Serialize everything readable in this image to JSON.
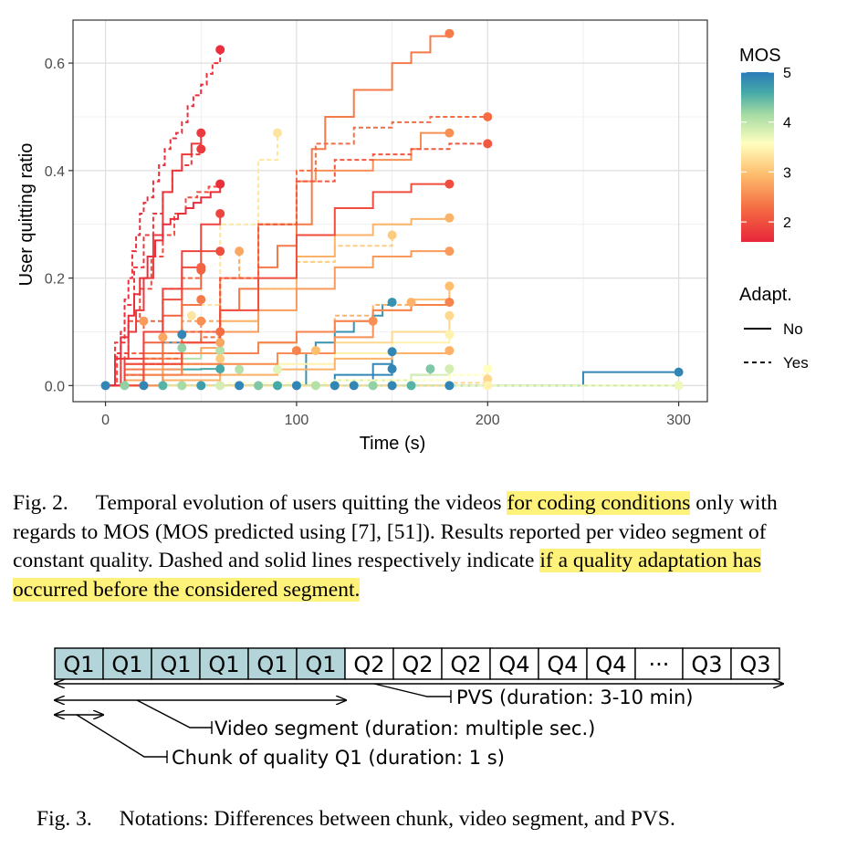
{
  "chart_data": {
    "type": "line",
    "xlabel": "Time (s)",
    "ylabel": "User quitting ratio",
    "xlim": [
      -17,
      315
    ],
    "ylim": [
      -0.03,
      0.68
    ],
    "xticks": [
      0,
      100,
      200,
      300
    ],
    "yticks": [
      0.0,
      0.2,
      0.4,
      0.6
    ],
    "ytick_labels": [
      "0.0",
      "0.2",
      "0.4",
      "0.6"
    ],
    "grid": true,
    "legend": {
      "color_title": "MOS",
      "color_ticks": [
        5,
        4,
        3,
        2
      ],
      "color_range": [
        1.6,
        5
      ],
      "linetype_title": "Adapt.",
      "linetype_entries": [
        "No",
        "Yes"
      ],
      "placement": "right"
    },
    "colorscale": [
      "#d7191c",
      "#fdae61",
      "#ffffbf",
      "#abdda4",
      "#2b83ba"
    ],
    "series": [
      {
        "mos": 1.7,
        "adapt": "Yes",
        "x": [
          0,
          5,
          8,
          10,
          12,
          14,
          16,
          18,
          20,
          22,
          25,
          28,
          31,
          34,
          37,
          40,
          43,
          46,
          50,
          53,
          56,
          60
        ],
        "y": [
          0,
          0.06,
          0.1,
          0.16,
          0.2,
          0.25,
          0.28,
          0.32,
          0.34,
          0.35,
          0.38,
          0.41,
          0.44,
          0.46,
          0.47,
          0.49,
          0.52,
          0.54,
          0.56,
          0.58,
          0.6,
          0.625
        ]
      },
      {
        "mos": 1.8,
        "adapt": "No",
        "x": [
          0,
          8,
          12,
          16,
          20,
          25,
          30,
          35,
          40,
          45,
          50
        ],
        "y": [
          0,
          0.05,
          0.1,
          0.14,
          0.2,
          0.28,
          0.36,
          0.4,
          0.43,
          0.45,
          0.47
        ]
      },
      {
        "mos": 1.8,
        "adapt": "Yes",
        "x": [
          0,
          5,
          10,
          15,
          20,
          25,
          30,
          35,
          40,
          45,
          50
        ],
        "y": [
          0,
          0.08,
          0.15,
          0.22,
          0.28,
          0.32,
          0.36,
          0.4,
          0.41,
          0.43,
          0.44
        ]
      },
      {
        "mos": 2.0,
        "adapt": "Yes",
        "x": [
          0,
          6,
          12,
          18,
          24,
          30,
          36,
          42,
          48,
          54,
          60
        ],
        "y": [
          0,
          0.06,
          0.12,
          0.18,
          0.24,
          0.28,
          0.32,
          0.35,
          0.36,
          0.37,
          0.375
        ]
      },
      {
        "mos": 1.9,
        "adapt": "No",
        "x": [
          0,
          10,
          20,
          30,
          40,
          50,
          60
        ],
        "y": [
          0,
          0.05,
          0.1,
          0.18,
          0.25,
          0.3,
          0.32
        ]
      },
      {
        "mos": 2.0,
        "adapt": "No",
        "x": [
          0,
          10,
          20,
          30,
          40,
          50,
          60
        ],
        "y": [
          0,
          0.04,
          0.1,
          0.16,
          0.22,
          0.25,
          0.25
        ]
      },
      {
        "mos": 2.2,
        "adapt": "Yes",
        "x": [
          0,
          10,
          20,
          30,
          40,
          50
        ],
        "y": [
          0,
          0.06,
          0.12,
          0.18,
          0.2,
          0.22
        ]
      },
      {
        "mos": 2.2,
        "adapt": "No",
        "x": [
          0,
          10,
          20,
          30,
          40,
          50
        ],
        "y": [
          0,
          0.04,
          0.08,
          0.13,
          0.18,
          0.215
        ]
      },
      {
        "mos": 2.4,
        "adapt": "No",
        "x": [
          0,
          10,
          20,
          30,
          40,
          50
        ],
        "y": [
          0,
          0.03,
          0.06,
          0.1,
          0.15,
          0.16
        ]
      },
      {
        "mos": 2.6,
        "adapt": "Yes",
        "x": [
          0,
          10,
          20,
          30,
          40,
          50
        ],
        "y": [
          0,
          0.02,
          0.05,
          0.08,
          0.1,
          0.12
        ]
      },
      {
        "mos": 2.3,
        "adapt": "Yes",
        "x": [
          0,
          10,
          20,
          30,
          40,
          50,
          60
        ],
        "y": [
          0,
          0.02,
          0.04,
          0.06,
          0.08,
          0.09,
          0.1
        ]
      },
      {
        "mos": 2.8,
        "adapt": "No",
        "x": [
          0,
          10,
          20,
          30,
          40,
          50,
          60
        ],
        "y": [
          0,
          0.01,
          0.02,
          0.04,
          0.06,
          0.07,
          0.08
        ]
      },
      {
        "mos": 1.7,
        "adapt": "No",
        "x": [
          0,
          5,
          8,
          12,
          15,
          18,
          22,
          26,
          30,
          34,
          38,
          42,
          46,
          50,
          55,
          60
        ],
        "y": [
          0,
          0.05,
          0.09,
          0.13,
          0.17,
          0.2,
          0.24,
          0.27,
          0.3,
          0.31,
          0.32,
          0.33,
          0.34,
          0.35,
          0.36,
          0.375
        ]
      },
      {
        "mos": 2.4,
        "adapt": "No",
        "x": [
          0,
          10,
          20,
          30,
          40,
          50,
          60,
          70,
          80,
          90,
          100,
          108,
          115,
          130,
          150,
          160,
          170,
          180
        ],
        "y": [
          0,
          0.02,
          0.04,
          0.06,
          0.08,
          0.1,
          0.14,
          0.18,
          0.22,
          0.26,
          0.3,
          0.44,
          0.5,
          0.55,
          0.6,
          0.62,
          0.65,
          0.655
        ]
      },
      {
        "mos": 2.3,
        "adapt": "Yes",
        "x": [
          0,
          20,
          40,
          60,
          80,
          100,
          110,
          130,
          150,
          170,
          200
        ],
        "y": [
          0,
          0.05,
          0.1,
          0.2,
          0.3,
          0.4,
          0.45,
          0.48,
          0.49,
          0.5,
          0.5
        ]
      },
      {
        "mos": 2.1,
        "adapt": "Yes",
        "x": [
          0,
          20,
          40,
          60,
          80,
          100,
          120,
          140,
          160,
          180,
          200
        ],
        "y": [
          0,
          0.04,
          0.1,
          0.2,
          0.3,
          0.38,
          0.42,
          0.43,
          0.44,
          0.45,
          0.45
        ]
      },
      {
        "mos": 2.6,
        "adapt": "No",
        "x": [
          0,
          20,
          40,
          60,
          80,
          100,
          110,
          140,
          160,
          165,
          180
        ],
        "y": [
          0,
          0.05,
          0.1,
          0.2,
          0.3,
          0.38,
          0.4,
          0.42,
          0.44,
          0.47,
          0.47
        ]
      },
      {
        "mos": 2.0,
        "adapt": "No",
        "x": [
          0,
          20,
          40,
          60,
          80,
          100,
          120,
          140,
          160,
          180
        ],
        "y": [
          0,
          0.04,
          0.08,
          0.14,
          0.2,
          0.28,
          0.33,
          0.36,
          0.375,
          0.375
        ]
      },
      {
        "mos": 2.9,
        "adapt": "No",
        "x": [
          0,
          20,
          40,
          60,
          80,
          100,
          120,
          140,
          160,
          180
        ],
        "y": [
          0,
          0.04,
          0.08,
          0.12,
          0.18,
          0.24,
          0.28,
          0.3,
          0.31,
          0.312
        ]
      },
      {
        "mos": 2.7,
        "adapt": "No",
        "x": [
          0,
          20,
          40,
          60,
          80,
          100,
          120,
          140,
          160,
          180
        ],
        "y": [
          0,
          0.03,
          0.06,
          0.1,
          0.14,
          0.18,
          0.22,
          0.24,
          0.25,
          0.25
        ]
      },
      {
        "mos": 3.1,
        "adapt": "Yes",
        "x": [
          0,
          20,
          40,
          60,
          80,
          100,
          120,
          150
        ],
        "y": [
          0,
          0.04,
          0.08,
          0.12,
          0.18,
          0.23,
          0.26,
          0.28
        ]
      },
      {
        "mos": 3.3,
        "adapt": "Yes",
        "x": [
          0,
          20,
          40,
          60,
          80,
          90
        ],
        "y": [
          0,
          0.05,
          0.15,
          0.3,
          0.42,
          0.47
        ]
      },
      {
        "mos": 2.8,
        "adapt": "Yes",
        "x": [
          0,
          20,
          40,
          60,
          70
        ],
        "y": [
          0,
          0.05,
          0.12,
          0.2,
          0.25
        ]
      },
      {
        "mos": 3.0,
        "adapt": "No",
        "x": [
          0,
          20,
          40,
          60,
          80,
          100,
          120,
          140,
          160,
          180
        ],
        "y": [
          0,
          0.02,
          0.04,
          0.06,
          0.08,
          0.1,
          0.12,
          0.14,
          0.16,
          0.185
        ]
      },
      {
        "mos": 2.5,
        "adapt": "No",
        "x": [
          0,
          20,
          40,
          60,
          80,
          100,
          120,
          140,
          160,
          180
        ],
        "y": [
          0,
          0.02,
          0.04,
          0.06,
          0.08,
          0.1,
          0.12,
          0.14,
          0.15,
          0.155
        ]
      },
      {
        "mos": 2.9,
        "adapt": "Yes",
        "x": [
          0,
          20,
          40,
          60,
          80,
          100,
          120,
          140,
          160
        ],
        "y": [
          0,
          0.02,
          0.04,
          0.06,
          0.08,
          0.1,
          0.13,
          0.15,
          0.155
        ]
      },
      {
        "mos": 4.8,
        "adapt": "No",
        "x": [
          0,
          50,
          100,
          105,
          110,
          120,
          130,
          140,
          145,
          150
        ],
        "y": [
          0,
          0,
          0,
          0.06,
          0.08,
          0.1,
          0.12,
          0.13,
          0.15,
          0.155
        ]
      },
      {
        "mos": 2.6,
        "adapt": "No",
        "x": [
          0,
          30,
          60,
          90,
          120,
          140
        ],
        "y": [
          0,
          0.02,
          0.04,
          0.06,
          0.09,
          0.12
        ]
      },
      {
        "mos": 3.2,
        "adapt": "No",
        "x": [
          0,
          30,
          60,
          90,
          120,
          150,
          180
        ],
        "y": [
          0,
          0.02,
          0.04,
          0.06,
          0.08,
          0.1,
          0.13
        ]
      },
      {
        "mos": 3.4,
        "adapt": "No",
        "x": [
          0,
          30,
          60,
          90,
          120,
          150,
          180
        ],
        "y": [
          0,
          0.01,
          0.02,
          0.04,
          0.06,
          0.08,
          0.095
        ]
      },
      {
        "mos": 2.9,
        "adapt": "No",
        "x": [
          0,
          30,
          60,
          90,
          120,
          150,
          180
        ],
        "y": [
          0,
          0.01,
          0.02,
          0.03,
          0.05,
          0.06,
          0.065
        ]
      },
      {
        "mos": 4.9,
        "adapt": "No",
        "x": [
          0,
          60,
          120,
          140,
          150
        ],
        "y": [
          0,
          0,
          0.02,
          0.04,
          0.063
        ]
      },
      {
        "mos": 4.9,
        "adapt": "No",
        "x": [
          0,
          60,
          120,
          140,
          150
        ],
        "y": [
          0,
          0,
          0.01,
          0.02,
          0.031
        ]
      },
      {
        "mos": 3.8,
        "adapt": "No",
        "x": [
          0,
          60,
          120,
          160,
          180
        ],
        "y": [
          0,
          0,
          0.01,
          0.02,
          0.031
        ]
      },
      {
        "mos": 4.3,
        "adapt": "No",
        "x": [
          0,
          60,
          120,
          160,
          170
        ],
        "y": [
          0,
          0,
          0.01,
          0.02,
          0.031
        ]
      },
      {
        "mos": 3.5,
        "adapt": "Yes",
        "x": [
          0,
          60,
          120,
          180,
          200
        ],
        "y": [
          0,
          0.005,
          0.01,
          0.02,
          0.031
        ]
      },
      {
        "mos": 3.2,
        "adapt": "Yes",
        "x": [
          0,
          60,
          120,
          180,
          200
        ],
        "y": [
          0,
          0,
          0,
          0.005,
          0.012
        ]
      },
      {
        "mos": 3.6,
        "adapt": "Yes",
        "x": [
          0,
          100,
          200,
          300
        ],
        "y": [
          0,
          0,
          0,
          0
        ]
      },
      {
        "mos": 4.9,
        "adapt": "No",
        "x": [
          0,
          100,
          200,
          250,
          300
        ],
        "y": [
          0,
          0,
          0,
          0.025,
          0.025
        ]
      },
      {
        "mos": 3.9,
        "adapt": "No",
        "x": [
          0,
          100,
          200,
          300
        ],
        "y": [
          0,
          0,
          0,
          0
        ]
      },
      {
        "mos": 4.0,
        "adapt": "No",
        "x": [
          0,
          10,
          20,
          30,
          40,
          50,
          60
        ],
        "y": [
          0,
          0.01,
          0.02,
          0.04,
          0.05,
          0.06,
          0.065
        ]
      },
      {
        "mos": 4.6,
        "adapt": "No",
        "x": [
          0,
          10,
          20,
          30,
          40,
          50,
          60
        ],
        "y": [
          0,
          0.01,
          0.02,
          0.03,
          0.03,
          0.031,
          0.031
        ]
      },
      {
        "mos": 4.9,
        "adapt": "No",
        "x": [
          0,
          10,
          20,
          30,
          40
        ],
        "y": [
          0,
          0.02,
          0.05,
          0.08,
          0.095
        ]
      }
    ],
    "end_markers_extra": [
      {
        "mos": 4.9,
        "x": 0,
        "y": 0
      },
      {
        "mos": 4.2,
        "x": 10,
        "y": 0
      },
      {
        "mos": 4.9,
        "x": 20,
        "y": 0
      },
      {
        "mos": 4.5,
        "x": 30,
        "y": 0
      },
      {
        "mos": 4.1,
        "x": 40,
        "y": 0
      },
      {
        "mos": 4.7,
        "x": 50,
        "y": 0
      },
      {
        "mos": 3.8,
        "x": 60,
        "y": 0
      },
      {
        "mos": 4.9,
        "x": 70,
        "y": 0
      },
      {
        "mos": 4.3,
        "x": 80,
        "y": 0
      },
      {
        "mos": 4.6,
        "x": 90,
        "y": 0
      },
      {
        "mos": 4.9,
        "x": 100,
        "y": 0
      },
      {
        "mos": 4.0,
        "x": 110,
        "y": 0
      },
      {
        "mos": 4.9,
        "x": 120,
        "y": 0
      },
      {
        "mos": 4.9,
        "x": 130,
        "y": 0
      },
      {
        "mos": 4.2,
        "x": 140,
        "y": 0
      },
      {
        "mos": 4.9,
        "x": 150,
        "y": 0
      },
      {
        "mos": 4.5,
        "x": 160,
        "y": 0
      },
      {
        "mos": 4.9,
        "x": 180,
        "y": 0
      },
      {
        "mos": 3.4,
        "x": 200,
        "y": 0
      },
      {
        "mos": 2.8,
        "x": 30,
        "y": 0.09
      },
      {
        "mos": 4.2,
        "x": 40,
        "y": 0.07
      },
      {
        "mos": 3.1,
        "x": 60,
        "y": 0.05
      },
      {
        "mos": 2.5,
        "x": 100,
        "y": 0.065
      },
      {
        "mos": 3.0,
        "x": 110,
        "y": 0.065
      },
      {
        "mos": 4.0,
        "x": 70,
        "y": 0.03
      },
      {
        "mos": 3.7,
        "x": 90,
        "y": 0.03
      },
      {
        "mos": 2.7,
        "x": 20,
        "y": 0.12
      },
      {
        "mos": 3.3,
        "x": 45,
        "y": 0.13
      }
    ]
  },
  "fig2_caption": {
    "label": "Fig. 2.",
    "text_plain_1": "Temporal evolution of users quitting the videos ",
    "highlight_1": "for coding conditions",
    "text_plain_2": " only with regards to MOS (MOS predicted using [7], [51]). Results reported per video segment of constant quality. Dashed and solid lines respectively indicate ",
    "highlight_2": "if a quality adaptation has occurred before the considered segment."
  },
  "notation": {
    "chunks": [
      "Q1",
      "Q1",
      "Q1",
      "Q1",
      "Q1",
      "Q1",
      "Q2",
      "Q2",
      "Q2",
      "Q4",
      "Q4",
      "Q4",
      "···",
      "Q3",
      "Q3"
    ],
    "shaded_count": 6,
    "pvs_label": "PVS (duration: 3-10 min)",
    "segment_label": "Video segment (duration: multiple sec.)",
    "chunk_label": "Chunk of quality Q1 (duration: 1 s)",
    "shade_color": "#b3d4d8"
  },
  "fig3_caption": {
    "label": "Fig. 3.",
    "text": "Notations: Differences between chunk, video segment, and PVS."
  }
}
